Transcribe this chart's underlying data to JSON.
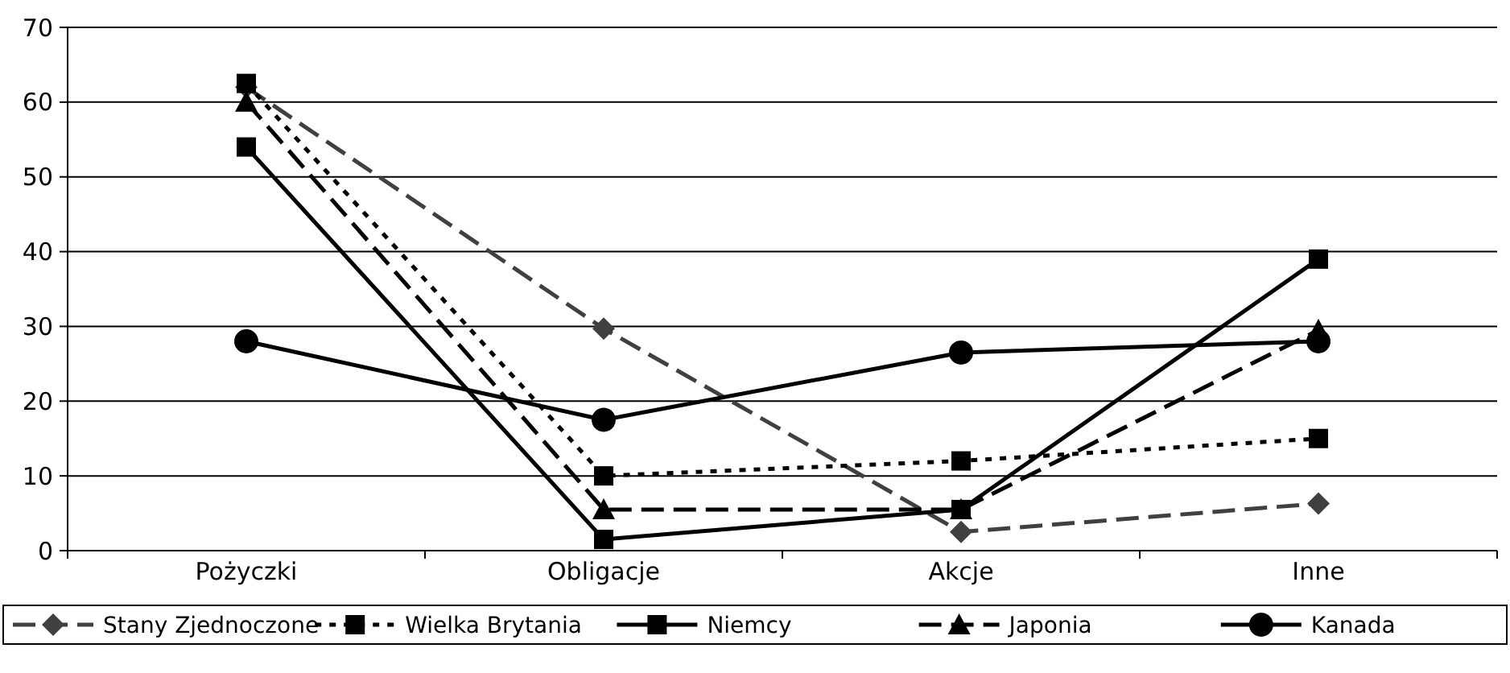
{
  "chart_data": {
    "type": "line",
    "categories": [
      "Pożyczki",
      "Obligacje",
      "Akcje",
      "Inne"
    ],
    "ylim": [
      0,
      70
    ],
    "yticks": [
      0,
      10,
      20,
      30,
      40,
      50,
      60,
      70
    ],
    "grid": "y",
    "legend": "bottom",
    "series": [
      {
        "name": "Stany Zjednoczone",
        "color": "#404040",
        "values": [
          62,
          29.7,
          2.5,
          6.3
        ],
        "marker": "diamond",
        "line_style": "dashed"
      },
      {
        "name": "Wielka Brytania",
        "color": "#000000",
        "values": [
          62.5,
          10,
          12,
          15
        ],
        "marker": "square",
        "line_style": "dotted"
      },
      {
        "name": "Niemcy",
        "color": "#000000",
        "values": [
          54,
          1.5,
          5.5,
          39
        ],
        "marker": "square",
        "line_style": "solid"
      },
      {
        "name": "Japonia",
        "color": "#000000",
        "values": [
          60,
          5.5,
          5.5,
          29.5
        ],
        "marker": "triangle",
        "line_style": "dashed"
      },
      {
        "name": "Kanada",
        "color": "#000000",
        "values": [
          28,
          17.5,
          26.5,
          28
        ],
        "marker": "circle",
        "line_style": "solid"
      }
    ]
  }
}
